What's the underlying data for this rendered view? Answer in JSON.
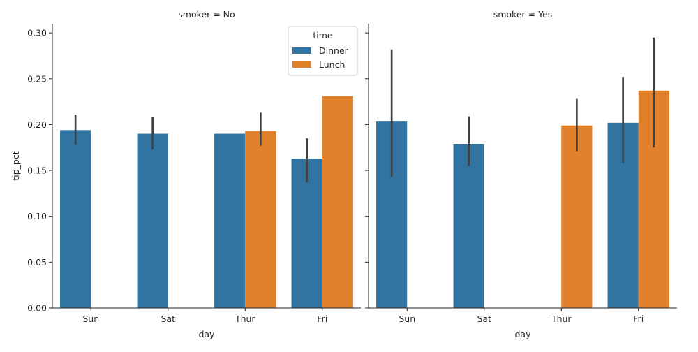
{
  "chart_data": {
    "type": "bar",
    "categories": [
      "Sun",
      "Sat",
      "Thur",
      "Fri"
    ],
    "ylabel": "tip_pct",
    "xlabel": "day",
    "ylim": [
      0,
      0.31
    ],
    "yticks": [
      "0.00",
      "0.05",
      "0.10",
      "0.15",
      "0.20",
      "0.25",
      "0.30"
    ],
    "ytick_values": [
      0,
      0.05,
      0.1,
      0.15,
      0.2,
      0.25,
      0.3
    ],
    "legend": {
      "title": "time",
      "placement": "top-right of first panel",
      "entries": [
        "Dinner",
        "Lunch"
      ]
    },
    "colors": {
      "Dinner": "#3274a1",
      "Lunch": "#e1812c",
      "errorbar": "#424242",
      "axis": "#262626"
    },
    "panels": [
      {
        "title": "smoker = No",
        "series": [
          {
            "name": "Dinner",
            "values": [
              0.194,
              0.19,
              0.19,
              0.163
            ],
            "ci_low": [
              0.178,
              0.173,
              null,
              0.137
            ],
            "ci_high": [
              0.211,
              0.208,
              null,
              0.185
            ]
          },
          {
            "name": "Lunch",
            "values": [
              null,
              null,
              0.193,
              0.231
            ],
            "ci_low": [
              null,
              null,
              0.177,
              null
            ],
            "ci_high": [
              null,
              null,
              0.213,
              null
            ]
          }
        ]
      },
      {
        "title": "smoker = Yes",
        "series": [
          {
            "name": "Dinner",
            "values": [
              0.204,
              0.179,
              null,
              0.202
            ],
            "ci_low": [
              0.143,
              0.155,
              null,
              0.158
            ],
            "ci_high": [
              0.282,
              0.209,
              null,
              0.252
            ]
          },
          {
            "name": "Lunch",
            "values": [
              null,
              null,
              0.199,
              0.237
            ],
            "ci_low": [
              null,
              null,
              0.171,
              0.175
            ],
            "ci_high": [
              null,
              null,
              0.228,
              0.295
            ]
          }
        ]
      }
    ]
  }
}
